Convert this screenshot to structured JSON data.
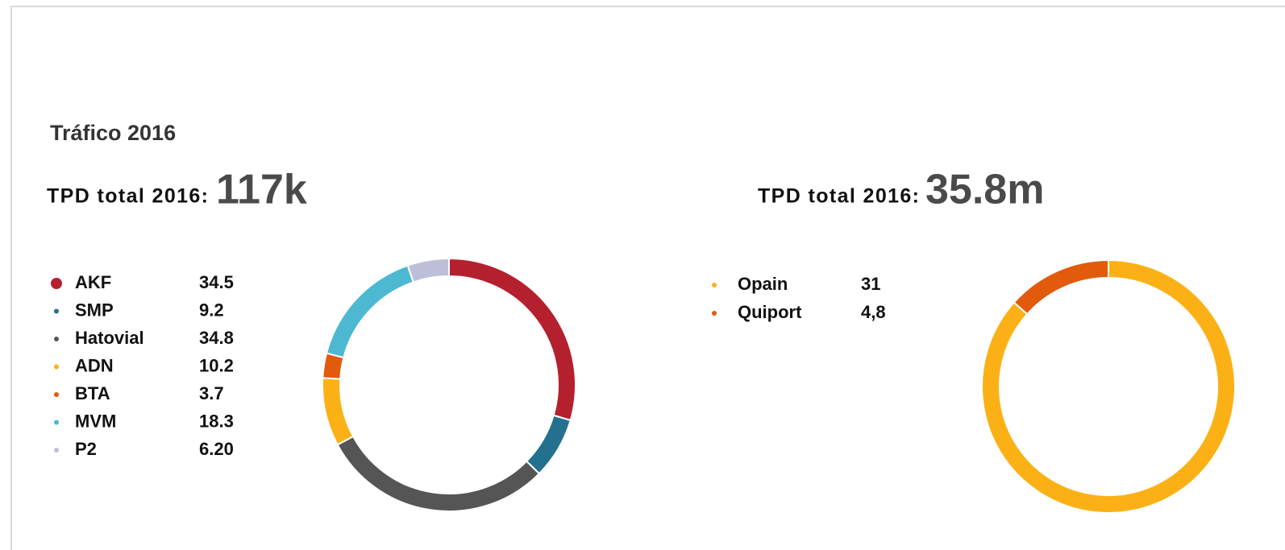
{
  "heading": "Tráfico 2016",
  "chart_data": [
    {
      "type": "pie",
      "donut": true,
      "title": "TPD total 2016:",
      "subtitle": "117k",
      "categories": [
        "AKF",
        "SMP",
        "Hatovial",
        "ADN",
        "BTA",
        "MVM",
        "P2"
      ],
      "values": [
        34.5,
        9.2,
        34.8,
        10.2,
        3.7,
        18.3,
        6.2
      ],
      "value_labels": [
        "34.5",
        "9.2",
        "34.8",
        "10.2",
        "3.7",
        "18.3",
        "6.20"
      ],
      "colors": [
        "#b5202e",
        "#23718f",
        "#555555",
        "#fbb116",
        "#e25a0c",
        "#4db8d1",
        "#bdbfd9"
      ]
    },
    {
      "type": "pie",
      "donut": true,
      "title": "TPD total 2016:",
      "subtitle": "35.8m",
      "categories": [
        "Opain",
        "Quiport"
      ],
      "values": [
        31,
        4.8
      ],
      "value_labels": [
        "31",
        "4,8"
      ],
      "colors": [
        "#fbb116",
        "#e25a0c"
      ]
    }
  ]
}
